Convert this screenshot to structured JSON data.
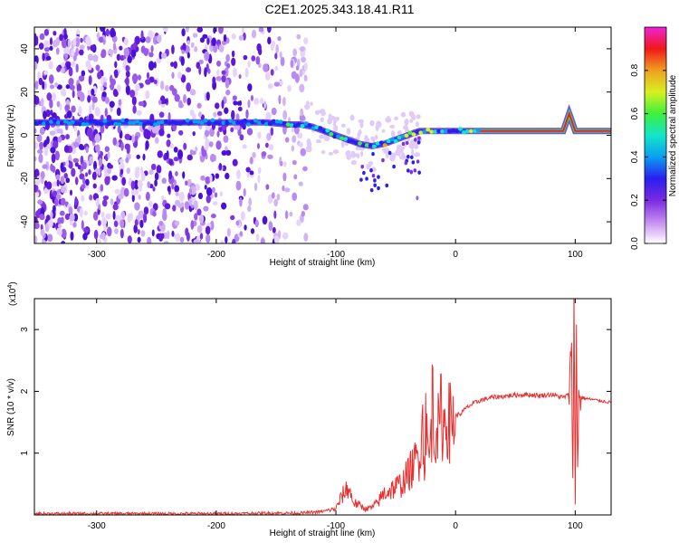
{
  "title": "C2E1.2025.343.18.41.R11",
  "chart_data": [
    {
      "type": "heatmap",
      "xlabel": "Height of straight line (km)",
      "ylabel": "Frequency (Hz)",
      "xlim": [
        -352,
        130
      ],
      "ylim": [
        -50,
        50
      ],
      "x_ticks": [
        -300,
        -200,
        -100,
        0,
        100
      ],
      "y_ticks": [
        -40,
        -20,
        0,
        20,
        40
      ],
      "colorbar": {
        "label": "Normalized spectral amplitude",
        "range": [
          0,
          1
        ],
        "ticks": [
          "0.0",
          "0.2",
          "0.4",
          "0.6",
          "0.8"
        ],
        "colors": [
          "#ffffff",
          "#c58cf0",
          "#7a2be0",
          "#2a1ef0",
          "#0aa0f0",
          "#12e6c8",
          "#3ef03c",
          "#d8f020",
          "#f0a020",
          "#f01818",
          "#f022d8"
        ]
      },
      "ridge": {
        "x": [
          -352,
          -320,
          -300,
          -280,
          -250,
          -220,
          -200,
          -180,
          -160,
          -140,
          -130,
          -120,
          -110,
          -100,
          -90,
          -80,
          -70,
          -60,
          -50,
          -40,
          -30,
          -20,
          -10,
          0,
          20,
          60,
          90,
          95,
          100,
          130
        ],
        "freq": [
          6,
          6,
          6,
          6,
          6,
          6,
          6,
          6,
          6,
          5,
          5,
          4,
          2,
          0,
          -2,
          -4,
          -5,
          -4,
          -2,
          0,
          2,
          2,
          2,
          2,
          2,
          2,
          2,
          10,
          2,
          2
        ]
      }
    },
    {
      "type": "line",
      "xlabel": "Height of straight line (km)",
      "ylabel": "SNR (10 * v/v)",
      "multiplier_label": "(x10",
      "multiplier_exp": "4",
      "multiplier_close": ")",
      "xlim": [
        -352,
        130
      ],
      "ylim": [
        0,
        3.5
      ],
      "x_ticks": [
        -300,
        -200,
        -100,
        0,
        100
      ],
      "y_ticks": [
        1,
        2,
        3
      ],
      "color": "#e83030",
      "series": [
        {
          "name": "SNR",
          "x": [
            -352,
            -300,
            -200,
            -150,
            -130,
            -120,
            -110,
            -100,
            -95,
            -90,
            -85,
            -80,
            -75,
            -70,
            -65,
            -60,
            -55,
            -50,
            -45,
            -40,
            -35,
            -30,
            -28,
            -26,
            -25,
            -24,
            -22,
            -20,
            -19,
            -18,
            -16,
            -14,
            -12,
            -10,
            -8,
            -5,
            0,
            5,
            10,
            20,
            30,
            40,
            50,
            60,
            70,
            80,
            90,
            95,
            97,
            98,
            99,
            100,
            101,
            102,
            103,
            105,
            110,
            120,
            130
          ],
          "y": [
            0.02,
            0.02,
            0.02,
            0.03,
            0.03,
            0.04,
            0.06,
            0.1,
            0.3,
            0.45,
            0.2,
            0.15,
            0.1,
            0.12,
            0.2,
            0.35,
            0.4,
            0.45,
            0.5,
            0.65,
            0.8,
            1.0,
            1.6,
            0.8,
            1.7,
            1.2,
            0.9,
            1.5,
            2.1,
            1.1,
            1.6,
            1.3,
            1.7,
            1.4,
            1.6,
            1.5,
            1.6,
            1.65,
            1.75,
            1.85,
            1.9,
            1.92,
            1.94,
            1.95,
            1.93,
            1.95,
            1.9,
            1.95,
            2.9,
            0.5,
            3.4,
            0.2,
            3.0,
            0.8,
            1.9,
            1.9,
            1.88,
            1.85,
            1.82
          ]
        }
      ]
    }
  ]
}
